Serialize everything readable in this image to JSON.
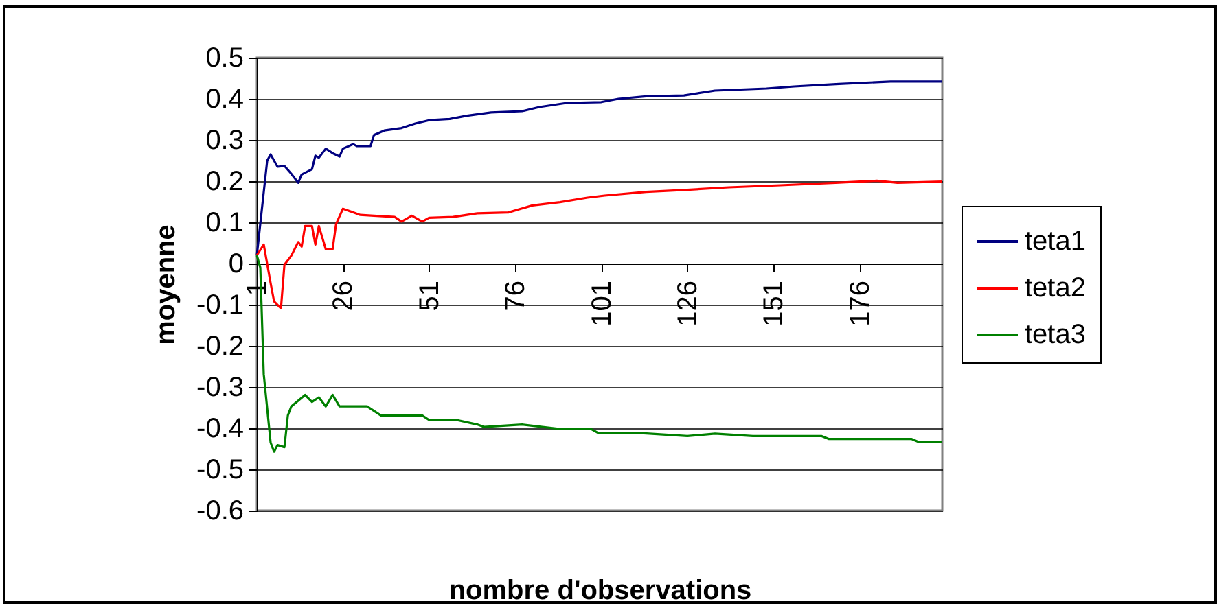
{
  "chart_data": {
    "type": "line",
    "xlabel": "nombre d'observations",
    "ylabel": "moyenne",
    "xlim": [
      1,
      200
    ],
    "xticks": [
      1,
      26,
      51,
      76,
      101,
      126,
      151,
      176
    ],
    "ylim": [
      -0.6,
      0.5
    ],
    "yticks": [
      -0.6,
      -0.5,
      -0.4,
      -0.3,
      -0.2,
      -0.1,
      0,
      0.1,
      0.2,
      0.3,
      0.4,
      0.5
    ],
    "grid": "y",
    "legend": "right",
    "series": [
      {
        "name": "teta1",
        "color": "#000080",
        "x": [
          1,
          4,
          5,
          7,
          9,
          11,
          13,
          14,
          17,
          18,
          19,
          21,
          23,
          25,
          26,
          29,
          30,
          34,
          35,
          38,
          43,
          47,
          51,
          57,
          62,
          69,
          78,
          83,
          91,
          101,
          106,
          114,
          125,
          134,
          149,
          157,
          170,
          185,
          200
        ],
        "values": [
          0.02,
          0.25,
          0.265,
          0.235,
          0.237,
          0.218,
          0.196,
          0.216,
          0.229,
          0.262,
          0.257,
          0.279,
          0.268,
          0.26,
          0.279,
          0.29,
          0.285,
          0.285,
          0.312,
          0.323,
          0.329,
          0.34,
          0.348,
          0.351,
          0.359,
          0.367,
          0.37,
          0.38,
          0.39,
          0.392,
          0.4,
          0.406,
          0.408,
          0.42,
          0.425,
          0.43,
          0.436,
          0.442,
          0.442
        ]
      },
      {
        "name": "teta2",
        "color": "#ff0000",
        "x": [
          1,
          3,
          5,
          6,
          8,
          9,
          11,
          13,
          14,
          15,
          17,
          18,
          19,
          21,
          23,
          24,
          26,
          29,
          31,
          35,
          41,
          43,
          46,
          49,
          51,
          58,
          65,
          74,
          81,
          89,
          97,
          102,
          114,
          126,
          138,
          153,
          169,
          181,
          187,
          200
        ],
        "values": [
          0.02,
          0.046,
          -0.048,
          -0.092,
          -0.109,
          -0.003,
          0.019,
          0.052,
          0.041,
          0.091,
          0.091,
          0.046,
          0.091,
          0.035,
          0.035,
          0.096,
          0.133,
          0.124,
          0.118,
          0.116,
          0.113,
          0.102,
          0.116,
          0.102,
          0.111,
          0.113,
          0.122,
          0.124,
          0.141,
          0.149,
          0.16,
          0.165,
          0.174,
          0.179,
          0.185,
          0.19,
          0.196,
          0.201,
          0.196,
          0.199
        ]
      },
      {
        "name": "teta3",
        "color": "#008000",
        "x": [
          1,
          2,
          3,
          5,
          6,
          7,
          9,
          10,
          11,
          15,
          17,
          19,
          21,
          23,
          25,
          29,
          33,
          37,
          49,
          51,
          59,
          65,
          67,
          78,
          89,
          98,
          100,
          111,
          126,
          134,
          145,
          165,
          167,
          191,
          193,
          200
        ],
        "values": [
          0.02,
          -0.01,
          -0.269,
          -0.435,
          -0.457,
          -0.441,
          -0.446,
          -0.369,
          -0.347,
          -0.319,
          -0.336,
          -0.325,
          -0.347,
          -0.319,
          -0.347,
          -0.347,
          -0.347,
          -0.369,
          -0.369,
          -0.38,
          -0.38,
          -0.391,
          -0.397,
          -0.391,
          -0.402,
          -0.402,
          -0.411,
          -0.411,
          -0.419,
          -0.413,
          -0.419,
          -0.419,
          -0.426,
          -0.426,
          -0.433,
          -0.433
        ]
      }
    ]
  }
}
